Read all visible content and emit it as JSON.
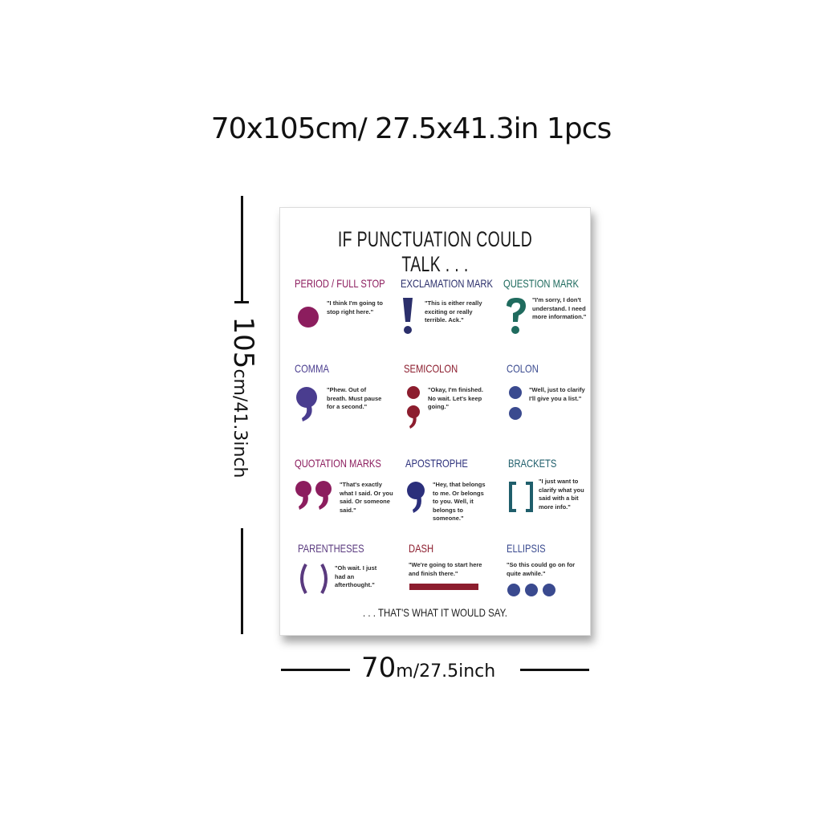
{
  "header": {
    "size_text": "70x105cm/ 27.5x41.3in 1pcs"
  },
  "dimensions": {
    "height_value": "105",
    "height_unit": "cm/41.3inch",
    "width_value": "70",
    "width_unit": "m/27.5inch"
  },
  "poster": {
    "title": "IF PUNCTUATION COULD TALK . . .",
    "footer": ". . . THAT'S WHAT IT WOULD SAY.",
    "items": [
      {
        "title": "PERIOD / FULL STOP",
        "quote": "\"I think I'm going to stop right here.\"",
        "icon": "period-icon",
        "color": "#8c1d5e"
      },
      {
        "title": "EXCLAMATION MARK",
        "quote": "\"This is either really exciting or really terrible. Ack.\"",
        "icon": "exclamation-icon",
        "color": "#2b2f6b"
      },
      {
        "title": "QUESTION MARK",
        "quote": "\"I'm sorry, I don't understand. I need more information.\"",
        "icon": "question-icon",
        "color": "#1f6b5e"
      },
      {
        "title": "COMMA",
        "quote": "\"Phew. Out of breath. Must pause for a second.\"",
        "icon": "comma-icon",
        "color": "#4a3d8f"
      },
      {
        "title": "SEMICOLON",
        "quote": "\"Okay, I'm finished. No wait. Let's keep going.\"",
        "icon": "semicolon-icon",
        "color": "#8c1d2e"
      },
      {
        "title": "COLON",
        "quote": "\"Well, just to clarify I'll give you a list.\"",
        "icon": "colon-icon",
        "color": "#3a4a8f"
      },
      {
        "title": "QUOTATION MARKS",
        "quote": "\"That's exactly what I said. Or you said. Or someone said.\"",
        "icon": "quotation-marks-icon",
        "color": "#8c1d5e"
      },
      {
        "title": "APOSTROPHE",
        "quote": "\"Hey, that belongs to me. Or belongs to you. Well, it belongs to someone.\"",
        "icon": "apostrophe-icon",
        "color": "#2b2f7b"
      },
      {
        "title": "BRACKETS",
        "quote": "\"I just want to clarify what you said with a bit more info.\"",
        "icon": "brackets-icon",
        "color": "#1f5e6b"
      },
      {
        "title": "PARENTHESES",
        "quote": "\"Oh wait. I just had an afterthought.\"",
        "icon": "parentheses-icon",
        "color": "#5a3a7f"
      },
      {
        "title": "DASH",
        "quote": "\"We're going to start here and finish there.\"",
        "icon": "dash-icon",
        "color": "#8c1d2e"
      },
      {
        "title": "ELLIPSIS",
        "quote": "\"So this could go on for quite awhile.\"",
        "icon": "ellipsis-icon",
        "color": "#3a4a8f"
      }
    ]
  }
}
